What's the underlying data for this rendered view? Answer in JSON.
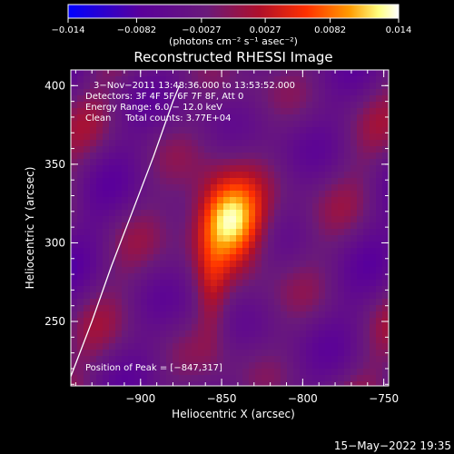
{
  "chart_data": {
    "type": "heatmap",
    "title": "Reconstructed RHESSI Image",
    "xlabel": "Heliocentric X (arcsec)",
    "ylabel": "Heliocentric Y (arcsec)",
    "xlim": [
      -943,
      -747
    ],
    "ylim": [
      209,
      410
    ],
    "x_ticks": [
      -900,
      -850,
      -800,
      -750
    ],
    "x_tick_labels": [
      "−900",
      "−850",
      "−800",
      "−750"
    ],
    "y_ticks": [
      250,
      300,
      350,
      400
    ],
    "y_tick_labels": [
      "250",
      "300",
      "350",
      "400"
    ],
    "colorbar": {
      "range": [
        -0.014,
        0.014
      ],
      "ticks": [
        -0.014,
        -0.0082,
        -0.0027,
        0.0027,
        0.0082,
        0.014
      ],
      "tick_labels": [
        "−0.014",
        "−0.0082",
        "−0.0027",
        "0.0027",
        "0.0082",
        "0.014"
      ],
      "unit_label": "(photons cm⁻² s⁻¹ asec⁻²)",
      "colors": [
        "#0000ff",
        "#5a009a",
        "#6a1a7a",
        "#b0102a",
        "#ff3000",
        "#ff9a00",
        "#ffff80",
        "#ffffff"
      ]
    },
    "peak": [
      -847,
      317
    ],
    "limb_curve": [
      [
        -943,
        215
      ],
      [
        -930,
        250
      ],
      [
        -918,
        285
      ],
      [
        -905,
        320
      ],
      [
        -892,
        355
      ],
      [
        -880,
        390
      ],
      [
        -876,
        400
      ]
    ],
    "info_lines": [
      "3−Nov−2011 13:48:36.000 to 13:53:52.000",
      "Detectors: 3F 4F 5F 6F 7F 8F, Att 0",
      "Energy Range: 6.0 − 12.0 keV",
      "Clean     Total counts: 3.77E+04"
    ],
    "peak_label": "Position of Peak = [−847,317]"
  },
  "footer": {
    "timestamp": "15−May−2022 19:35"
  }
}
